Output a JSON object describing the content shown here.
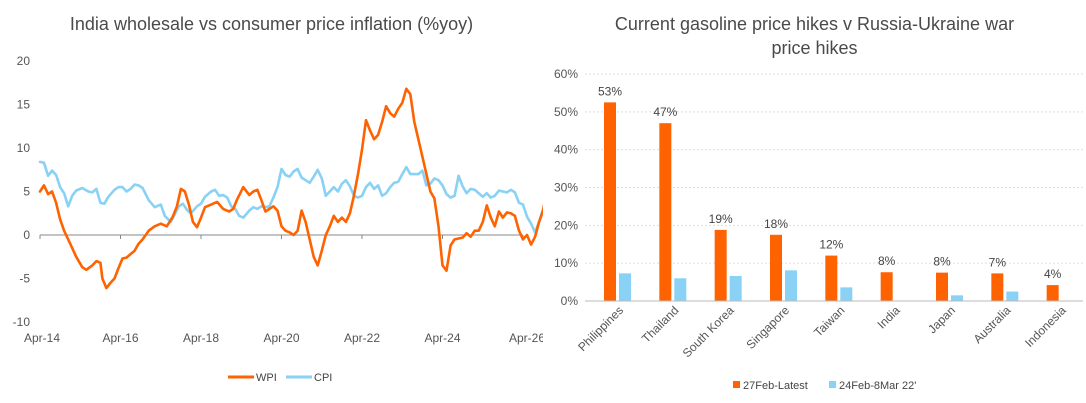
{
  "chart_data": [
    {
      "type": "line",
      "title": "India wholesale vs consumer price inflation (%yoy)",
      "xlabel": "",
      "ylabel": "",
      "ylim": [
        -10,
        20
      ],
      "yticks": [
        "20",
        "15",
        "10",
        "5",
        "0",
        "-5",
        "-10"
      ],
      "x_tick_labels": [
        "Apr-14",
        "Apr-16",
        "Apr-18",
        "Apr-20",
        "Apr-22",
        "Apr-24",
        "Apr-26"
      ],
      "x_start": 2014.25,
      "x_end": 2026.25,
      "legend_position": "bottom",
      "series": [
        {
          "name": "WPI",
          "color": "#ff6200",
          "points": [
            [
              2014.25,
              5.0
            ],
            [
              2014.35,
              5.7
            ],
            [
              2014.45,
              4.7
            ],
            [
              2014.55,
              5.0
            ],
            [
              2014.65,
              3.7
            ],
            [
              2014.75,
              1.8
            ],
            [
              2014.85,
              0.5
            ],
            [
              2015.0,
              -1.0
            ],
            [
              2015.15,
              -2.5
            ],
            [
              2015.3,
              -3.7
            ],
            [
              2015.4,
              -4.0
            ],
            [
              2015.55,
              -3.5
            ],
            [
              2015.65,
              -3.0
            ],
            [
              2015.75,
              -3.2
            ],
            [
              2015.8,
              -5.0
            ],
            [
              2015.9,
              -6.1
            ],
            [
              2016.0,
              -5.5
            ],
            [
              2016.1,
              -5.0
            ],
            [
              2016.2,
              -3.8
            ],
            [
              2016.3,
              -2.7
            ],
            [
              2016.4,
              -2.6
            ],
            [
              2016.5,
              -2.2
            ],
            [
              2016.6,
              -1.8
            ],
            [
              2016.7,
              -1.0
            ],
            [
              2016.8,
              -0.5
            ],
            [
              2016.95,
              0.5
            ],
            [
              2017.1,
              1.0
            ],
            [
              2017.25,
              1.3
            ],
            [
              2017.4,
              1.0
            ],
            [
              2017.55,
              2.1
            ],
            [
              2017.65,
              3.3
            ],
            [
              2017.75,
              5.3
            ],
            [
              2017.85,
              5.0
            ],
            [
              2017.95,
              3.5
            ],
            [
              2018.05,
              1.5
            ],
            [
              2018.15,
              0.9
            ],
            [
              2018.25,
              2.0
            ],
            [
              2018.35,
              3.2
            ],
            [
              2018.5,
              3.5
            ],
            [
              2018.65,
              3.8
            ],
            [
              2018.8,
              3.0
            ],
            [
              2018.95,
              2.7
            ],
            [
              2019.05,
              3.0
            ],
            [
              2019.15,
              4.1
            ],
            [
              2019.3,
              5.5
            ],
            [
              2019.45,
              4.6
            ],
            [
              2019.55,
              5.0
            ],
            [
              2019.65,
              5.2
            ],
            [
              2019.75,
              4.0
            ],
            [
              2019.85,
              2.7
            ],
            [
              2019.95,
              3.0
            ],
            [
              2020.05,
              3.3
            ],
            [
              2020.15,
              2.8
            ],
            [
              2020.25,
              1.0
            ],
            [
              2020.35,
              0.5
            ],
            [
              2020.45,
              0.3
            ],
            [
              2020.55,
              0.0
            ],
            [
              2020.65,
              0.5
            ],
            [
              2020.75,
              2.8
            ],
            [
              2020.85,
              1.5
            ],
            [
              2020.95,
              -0.5
            ],
            [
              2021.05,
              -2.5
            ],
            [
              2021.15,
              -3.5
            ],
            [
              2021.25,
              -1.8
            ],
            [
              2021.35,
              0.0
            ],
            [
              2021.45,
              1.0
            ],
            [
              2021.55,
              2.2
            ],
            [
              2021.65,
              1.5
            ],
            [
              2021.75,
              2.0
            ],
            [
              2021.85,
              1.5
            ],
            [
              2021.95,
              2.5
            ],
            [
              2022.05,
              4.5
            ],
            [
              2022.15,
              7.0
            ],
            [
              2022.25,
              9.8
            ],
            [
              2022.35,
              13.2
            ],
            [
              2022.45,
              12.0
            ],
            [
              2022.55,
              11.0
            ],
            [
              2022.65,
              11.5
            ],
            [
              2022.75,
              13.0
            ],
            [
              2022.85,
              14.8
            ],
            [
              2022.95,
              14.0
            ],
            [
              2023.05,
              13.6
            ],
            [
              2023.15,
              14.5
            ],
            [
              2023.25,
              15.2
            ],
            [
              2023.35,
              16.8
            ],
            [
              2023.45,
              16.2
            ],
            [
              2023.55,
              13.0
            ],
            [
              2023.7,
              10.0
            ],
            [
              2023.85,
              7.0
            ],
            [
              2023.95,
              5.0
            ],
            [
              2024.05,
              4.2
            ],
            [
              2024.15,
              1.0
            ],
            [
              2024.25,
              -3.5
            ],
            [
              2024.35,
              -4.1
            ],
            [
              2024.45,
              -1.2
            ],
            [
              2024.55,
              -0.5
            ],
            [
              2024.65,
              -0.4
            ],
            [
              2024.75,
              -0.3
            ],
            [
              2024.85,
              0.2
            ],
            [
              2024.95,
              -0.2
            ],
            [
              2025.05,
              0.5
            ],
            [
              2025.15,
              0.5
            ],
            [
              2025.25,
              1.5
            ],
            [
              2025.35,
              3.4
            ],
            [
              2025.45,
              2.0
            ],
            [
              2025.55,
              1.0
            ],
            [
              2025.65,
              2.7
            ],
            [
              2025.75,
              2.0
            ],
            [
              2025.85,
              2.6
            ],
            [
              2025.95,
              2.5
            ],
            [
              2026.05,
              2.2
            ],
            [
              2026.15,
              0.5
            ],
            [
              2026.25,
              -0.5
            ],
            [
              2026.35,
              0.0
            ],
            [
              2026.45,
              -1.1
            ],
            [
              2026.55,
              -0.2
            ],
            [
              2026.65,
              1.5
            ],
            [
              2026.75,
              2.8
            ],
            [
              2026.83,
              5.0
            ],
            [
              2026.88,
              8.3
            ]
          ]
        },
        {
          "name": "CPI",
          "color": "#89d1f5",
          "points": [
            [
              2014.25,
              8.4
            ],
            [
              2014.35,
              8.3
            ],
            [
              2014.45,
              6.8
            ],
            [
              2014.55,
              7.4
            ],
            [
              2014.65,
              6.9
            ],
            [
              2014.75,
              5.5
            ],
            [
              2014.85,
              4.8
            ],
            [
              2014.95,
              3.3
            ],
            [
              2015.05,
              4.5
            ],
            [
              2015.15,
              5.1
            ],
            [
              2015.3,
              5.4
            ],
            [
              2015.45,
              5.0
            ],
            [
              2015.55,
              4.9
            ],
            [
              2015.65,
              5.3
            ],
            [
              2015.75,
              3.7
            ],
            [
              2015.85,
              3.6
            ],
            [
              2015.95,
              4.4
            ],
            [
              2016.1,
              5.2
            ],
            [
              2016.2,
              5.5
            ],
            [
              2016.3,
              5.5
            ],
            [
              2016.4,
              5.0
            ],
            [
              2016.5,
              5.3
            ],
            [
              2016.6,
              5.8
            ],
            [
              2016.7,
              5.7
            ],
            [
              2016.8,
              5.4
            ],
            [
              2016.95,
              4.0
            ],
            [
              2017.1,
              3.2
            ],
            [
              2017.25,
              3.5
            ],
            [
              2017.35,
              2.2
            ],
            [
              2017.5,
              1.5
            ],
            [
              2017.6,
              2.4
            ],
            [
              2017.7,
              3.3
            ],
            [
              2017.8,
              3.6
            ],
            [
              2017.9,
              2.9
            ],
            [
              2018.0,
              2.5
            ],
            [
              2018.15,
              3.3
            ],
            [
              2018.25,
              3.6
            ],
            [
              2018.35,
              4.4
            ],
            [
              2018.5,
              5.0
            ],
            [
              2018.6,
              5.2
            ],
            [
              2018.7,
              4.5
            ],
            [
              2018.8,
              4.6
            ],
            [
              2018.9,
              4.3
            ],
            [
              2019.0,
              3.3
            ],
            [
              2019.1,
              3.0
            ],
            [
              2019.2,
              2.2
            ],
            [
              2019.3,
              2.0
            ],
            [
              2019.45,
              2.8
            ],
            [
              2019.55,
              3.2
            ],
            [
              2019.65,
              3.0
            ],
            [
              2019.75,
              3.3
            ],
            [
              2019.85,
              3.2
            ],
            [
              2019.95,
              3.3
            ],
            [
              2020.05,
              4.3
            ],
            [
              2020.15,
              5.5
            ],
            [
              2020.25,
              7.6
            ],
            [
              2020.35,
              6.9
            ],
            [
              2020.45,
              6.7
            ],
            [
              2020.55,
              7.3
            ],
            [
              2020.65,
              7.6
            ],
            [
              2020.75,
              6.6
            ],
            [
              2020.85,
              6.3
            ],
            [
              2020.95,
              6.0
            ],
            [
              2021.05,
              6.7
            ],
            [
              2021.15,
              7.5
            ],
            [
              2021.25,
              6.5
            ],
            [
              2021.35,
              4.5
            ],
            [
              2021.45,
              5.0
            ],
            [
              2021.55,
              5.5
            ],
            [
              2021.65,
              5.0
            ],
            [
              2021.75,
              5.9
            ],
            [
              2021.85,
              6.3
            ],
            [
              2021.95,
              5.6
            ],
            [
              2022.05,
              4.5
            ],
            [
              2022.15,
              4.3
            ],
            [
              2022.25,
              4.5
            ],
            [
              2022.35,
              5.5
            ],
            [
              2022.45,
              6.0
            ],
            [
              2022.55,
              5.3
            ],
            [
              2022.65,
              5.7
            ],
            [
              2022.75,
              4.5
            ],
            [
              2022.85,
              4.8
            ],
            [
              2022.95,
              5.5
            ],
            [
              2023.05,
              6.0
            ],
            [
              2023.15,
              6.1
            ],
            [
              2023.25,
              7.0
            ],
            [
              2023.35,
              7.8
            ],
            [
              2023.45,
              7.0
            ],
            [
              2023.55,
              7.0
            ],
            [
              2023.65,
              7.0
            ],
            [
              2023.75,
              7.4
            ],
            [
              2023.85,
              5.7
            ],
            [
              2023.95,
              5.9
            ],
            [
              2024.05,
              6.5
            ],
            [
              2024.15,
              6.3
            ],
            [
              2024.25,
              5.7
            ],
            [
              2024.35,
              4.7
            ],
            [
              2024.45,
              4.3
            ],
            [
              2024.55,
              4.5
            ],
            [
              2024.65,
              6.8
            ],
            [
              2024.75,
              5.6
            ],
            [
              2024.85,
              4.8
            ],
            [
              2024.95,
              5.3
            ],
            [
              2025.05,
              5.2
            ],
            [
              2025.15,
              4.8
            ],
            [
              2025.25,
              4.4
            ],
            [
              2025.35,
              4.8
            ],
            [
              2025.45,
              4.3
            ],
            [
              2025.55,
              4.5
            ],
            [
              2025.65,
              5.1
            ],
            [
              2025.75,
              5.0
            ],
            [
              2025.85,
              4.9
            ],
            [
              2025.95,
              5.2
            ],
            [
              2026.05,
              4.9
            ],
            [
              2026.15,
              3.7
            ],
            [
              2026.25,
              3.5
            ],
            [
              2026.35,
              2.1
            ],
            [
              2026.45,
              1.3
            ],
            [
              2026.55,
              0.3
            ],
            [
              2026.65,
              1.5
            ],
            [
              2026.75,
              3.0
            ],
            [
              2026.85,
              3.5
            ]
          ]
        }
      ]
    },
    {
      "type": "bar",
      "title": "Current gasoline price hikes v Russia-Ukraine war price hikes",
      "title_lines": [
        "Current gasoline price hikes v Russia-Ukraine war",
        "price hikes"
      ],
      "xlabel": "",
      "ylabel": "",
      "ylim": [
        0,
        60
      ],
      "yticks": [
        "60%",
        "50%",
        "40%",
        "30%",
        "20%",
        "10%",
        "0%"
      ],
      "categories": [
        "Philippines",
        "Thailand",
        "South Korea",
        "Singapore",
        "Taiwan",
        "India",
        "Japan",
        "Australia",
        "Indonesia"
      ],
      "legend_position": "bottom",
      "series": [
        {
          "name": "27Feb-Latest",
          "color": "#ff6200",
          "values": [
            52.5,
            47,
            18.8,
            17.5,
            12,
            7.6,
            7.5,
            7.3,
            4.2
          ],
          "data_labels": [
            "53%",
            "47%",
            "19%",
            "18%",
            "12%",
            "8%",
            "8%",
            "7%",
            "4%"
          ]
        },
        {
          "name": "24Feb-8Mar 22'",
          "color": "#89d1f5",
          "values": [
            7.3,
            6.0,
            6.6,
            8.1,
            3.6,
            0,
            1.5,
            2.5,
            0
          ]
        }
      ]
    }
  ]
}
